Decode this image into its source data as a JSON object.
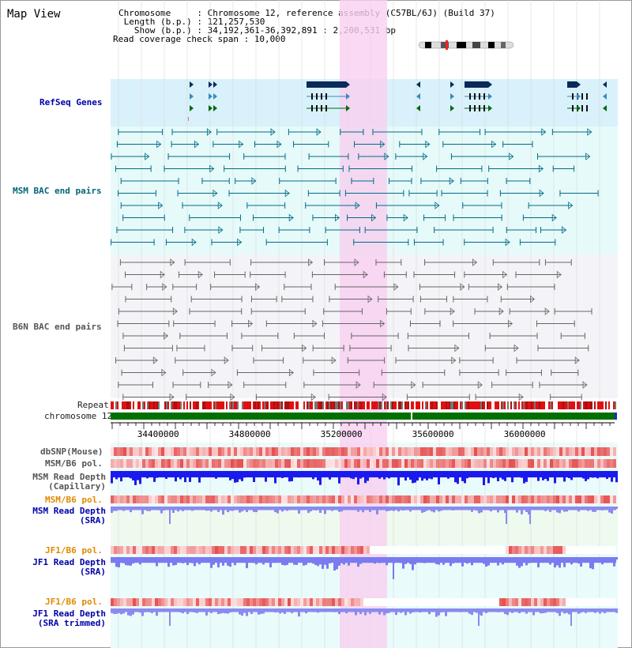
{
  "header": {
    "title": "Map View",
    "chromosome_line": "Chromosome     : Chromosome 12, reference assembly (C57BL/6J) (Build 37)",
    "length_line": " Length (b.p.) : 121,257,530",
    "show_line": "   Show (b.p.) : 34,192,361-36,392,891 : 2,200,531 bp",
    "coverage_line": "Read coverage check span : 10,000"
  },
  "tracks": {
    "refseq": "RefSeq Genes",
    "msm_bac": "MSM BAC end pairs",
    "b6n_bac": "B6N BAC end pairs",
    "repeat": "Repeat",
    "chromosome": "chromosome 12",
    "dbsnp": "dbSNP(Mouse)",
    "msm_b6_pol_1": "MSM/B6 pol.",
    "msm_depth_cap": "MSM Read Depth\n(Capillary)",
    "msm_b6_pol_2": "MSM/B6 pol.",
    "msm_depth_sra": "MSM Read Depth\n(SRA)",
    "jf1_b6_pol_1": "JF1/B6 pol.",
    "jf1_depth_sra": "JF1 Read Depth\n(SRA)",
    "jf1_b6_pol_2": "JF1/B6 pol.",
    "jf1_depth_trim": "JF1 Read Depth\n(SRA trimmed)"
  },
  "axis": {
    "start": 34192361,
    "end": 36392891,
    "ticks": [
      "34400000",
      "34800000",
      "35200000",
      "35600000",
      "36000000"
    ]
  },
  "colors": {
    "highlight": "#f8d0f0",
    "refseq_bg": "#d9f1fb",
    "msm_bg": "#e6fafa",
    "b6n_bg": "#f5f5f8",
    "chromosome_bar": "#007000",
    "depth_capillary": "#1a1aee",
    "depth_sra": "#8a8af0"
  }
}
